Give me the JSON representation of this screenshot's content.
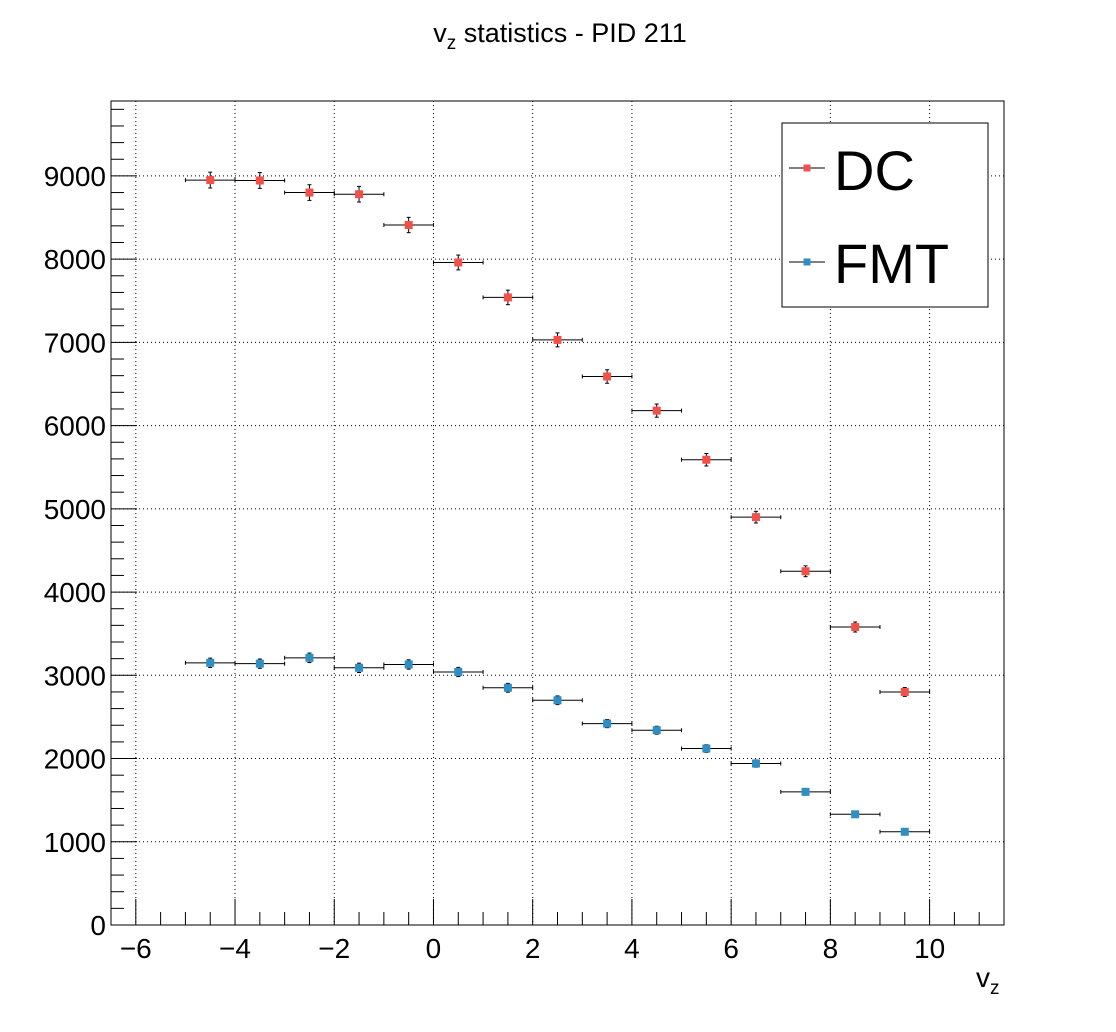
{
  "colors": {
    "DC": "#f2514a",
    "FMT": "#2f8fc3",
    "grid": "#000000",
    "axis": "#000000",
    "background": "#ffffff"
  },
  "chart_data": {
    "type": "scatter",
    "title": {
      "main": "v",
      "sub": "z",
      "rest": " statistics - PID 211"
    },
    "xlabel": {
      "main": "v",
      "sub": "z"
    },
    "ylabel": "",
    "xlim": [
      -6.5,
      11.5
    ],
    "ylim": [
      0,
      9900
    ],
    "x_ticks": [
      -6,
      -4,
      -2,
      0,
      2,
      4,
      6,
      8,
      10
    ],
    "x_tick_labels": [
      "−6",
      "−4",
      "−2",
      "0",
      "2",
      "4",
      "6",
      "8",
      "10"
    ],
    "y_ticks": [
      0,
      1000,
      2000,
      3000,
      4000,
      5000,
      6000,
      7000,
      8000,
      9000
    ],
    "y_tick_labels": [
      "0",
      "1000",
      "2000",
      "3000",
      "4000",
      "5000",
      "6000",
      "7000",
      "8000",
      "9000"
    ],
    "grid": true,
    "x_bin_halfwidth": 0.5,
    "legend": {
      "position": "top-right",
      "entries": [
        "DC",
        "FMT"
      ]
    },
    "series": [
      {
        "name": "DC",
        "x": [
          -4.5,
          -3.5,
          -2.5,
          -1.5,
          -0.5,
          0.5,
          1.5,
          2.5,
          3.5,
          4.5,
          5.5,
          6.5,
          7.5,
          8.5,
          9.5
        ],
        "y": [
          8950,
          8945,
          8800,
          8780,
          8410,
          7960,
          7540,
          7030,
          6590,
          6180,
          5590,
          4900,
          4250,
          3580,
          2800
        ],
        "yerr": [
          95,
          95,
          94,
          94,
          92,
          89,
          87,
          84,
          81,
          79,
          75,
          70,
          65,
          60,
          53
        ]
      },
      {
        "name": "FMT",
        "x": [
          -4.5,
          -3.5,
          -2.5,
          -1.5,
          -0.5,
          0.5,
          1.5,
          2.5,
          3.5,
          4.5,
          5.5,
          6.5,
          7.5,
          8.5,
          9.5
        ],
        "y": [
          3150,
          3140,
          3210,
          3090,
          3130,
          3040,
          2850,
          2700,
          2420,
          2340,
          2120,
          1940,
          1600,
          1330,
          1120
        ],
        "yerr": [
          56,
          56,
          57,
          56,
          56,
          55,
          53,
          52,
          49,
          48,
          46,
          44,
          40,
          36,
          33
        ]
      }
    ]
  }
}
